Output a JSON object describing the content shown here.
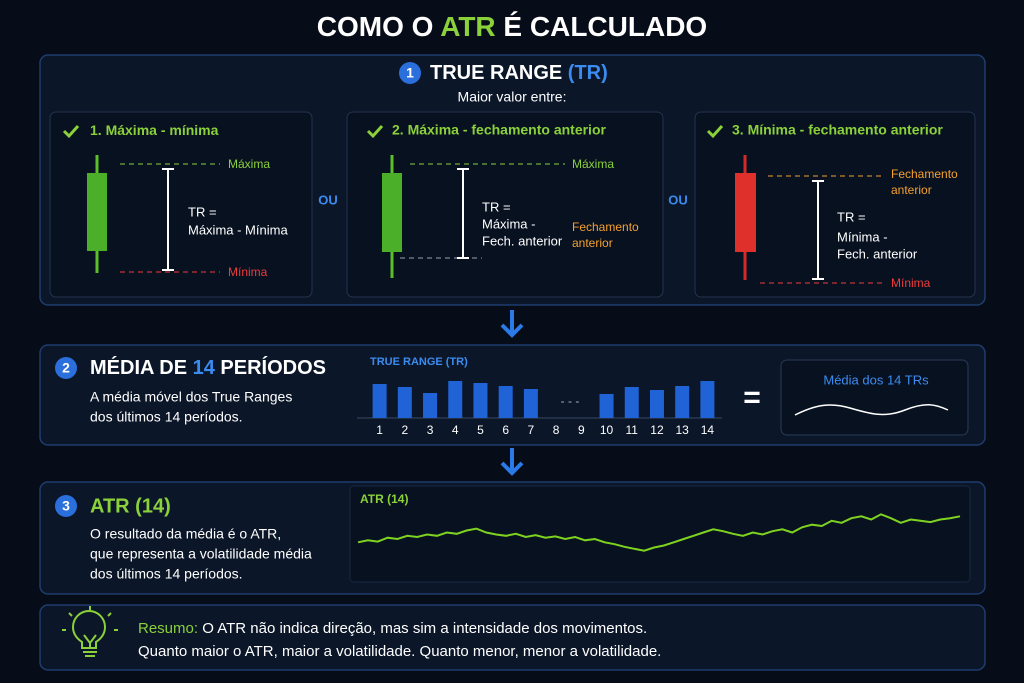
{
  "title": {
    "before": "COMO O ",
    "highlight": "ATR",
    "after": " É CALCULADO"
  },
  "step1": {
    "number": "1",
    "heading": "TRUE RANGE ",
    "heading_tag": "(TR)",
    "subtitle": "Maior valor entre:",
    "or": [
      "OU",
      "OU"
    ],
    "cards": [
      {
        "title": "1. Máxima - mínima",
        "top_label": "Máxima",
        "bottom_label": "Mínima",
        "formula": [
          "TR =",
          "Máxima - Mínima"
        ]
      },
      {
        "title": "2. Máxima - fechamento anterior",
        "top_label": "Máxima",
        "side_label": [
          "Fechamento",
          "anterior"
        ],
        "formula": [
          "TR =",
          "Máxima -",
          "Fech. anterior"
        ]
      },
      {
        "title": "3. Mínima - fechamento anterior",
        "top_label": [
          "Fechamento",
          "anterior"
        ],
        "bottom_label": "Mínima",
        "formula": [
          "TR =",
          "Mínima -",
          "Fech. anterior"
        ]
      }
    ]
  },
  "step2": {
    "number": "2",
    "heading": {
      "before": "MÉDIA DE ",
      "highlight": "14",
      "after": " PERÍODOS"
    },
    "description": [
      "A média móvel dos True Ranges",
      "dos últimos 14 períodos."
    ],
    "chart": {
      "type": "bar",
      "title": "TRUE RANGE (TR)",
      "categories": [
        "1",
        "2",
        "3",
        "4",
        "5",
        "6",
        "7",
        "8",
        "9",
        "10",
        "11",
        "12",
        "13",
        "14"
      ],
      "values": [
        34,
        31,
        25,
        37,
        35,
        32,
        29,
        null,
        null,
        24,
        31,
        28,
        32,
        37
      ],
      "gap_label": "- - -",
      "color": "#1f63d6",
      "ylim": [
        0,
        40
      ]
    },
    "equals": "=",
    "result_label": "Média dos 14 TRs"
  },
  "step3": {
    "number": "3",
    "heading": "ATR (14)",
    "description": [
      "O resultado da média é o ATR,",
      "que representa a volatilidade média",
      "dos últimos 14 períodos."
    ],
    "chart": {
      "type": "line",
      "title": "ATR (14)",
      "color": "#7ed321",
      "ylim": [
        0,
        100
      ],
      "values": [
        35,
        38,
        36,
        42,
        40,
        45,
        43,
        47,
        45,
        50,
        48,
        53,
        56,
        50,
        47,
        45,
        48,
        43,
        46,
        42,
        44,
        40,
        43,
        38,
        40,
        35,
        32,
        28,
        25,
        22,
        27,
        30,
        35,
        40,
        45,
        50,
        55,
        52,
        48,
        45,
        50,
        47,
        52,
        55,
        50,
        58,
        62,
        60,
        68,
        65,
        72,
        75,
        70,
        78,
        72,
        65,
        70,
        68,
        66,
        70,
        72,
        75
      ]
    }
  },
  "summary": {
    "label": "Resumo:",
    "lines": [
      " O ATR não indica direção, mas sim a intensidade dos movimentos.",
      "Quanto maior o ATR, maior a volatilidade. Quanto menor, menor a volatilidade."
    ]
  }
}
